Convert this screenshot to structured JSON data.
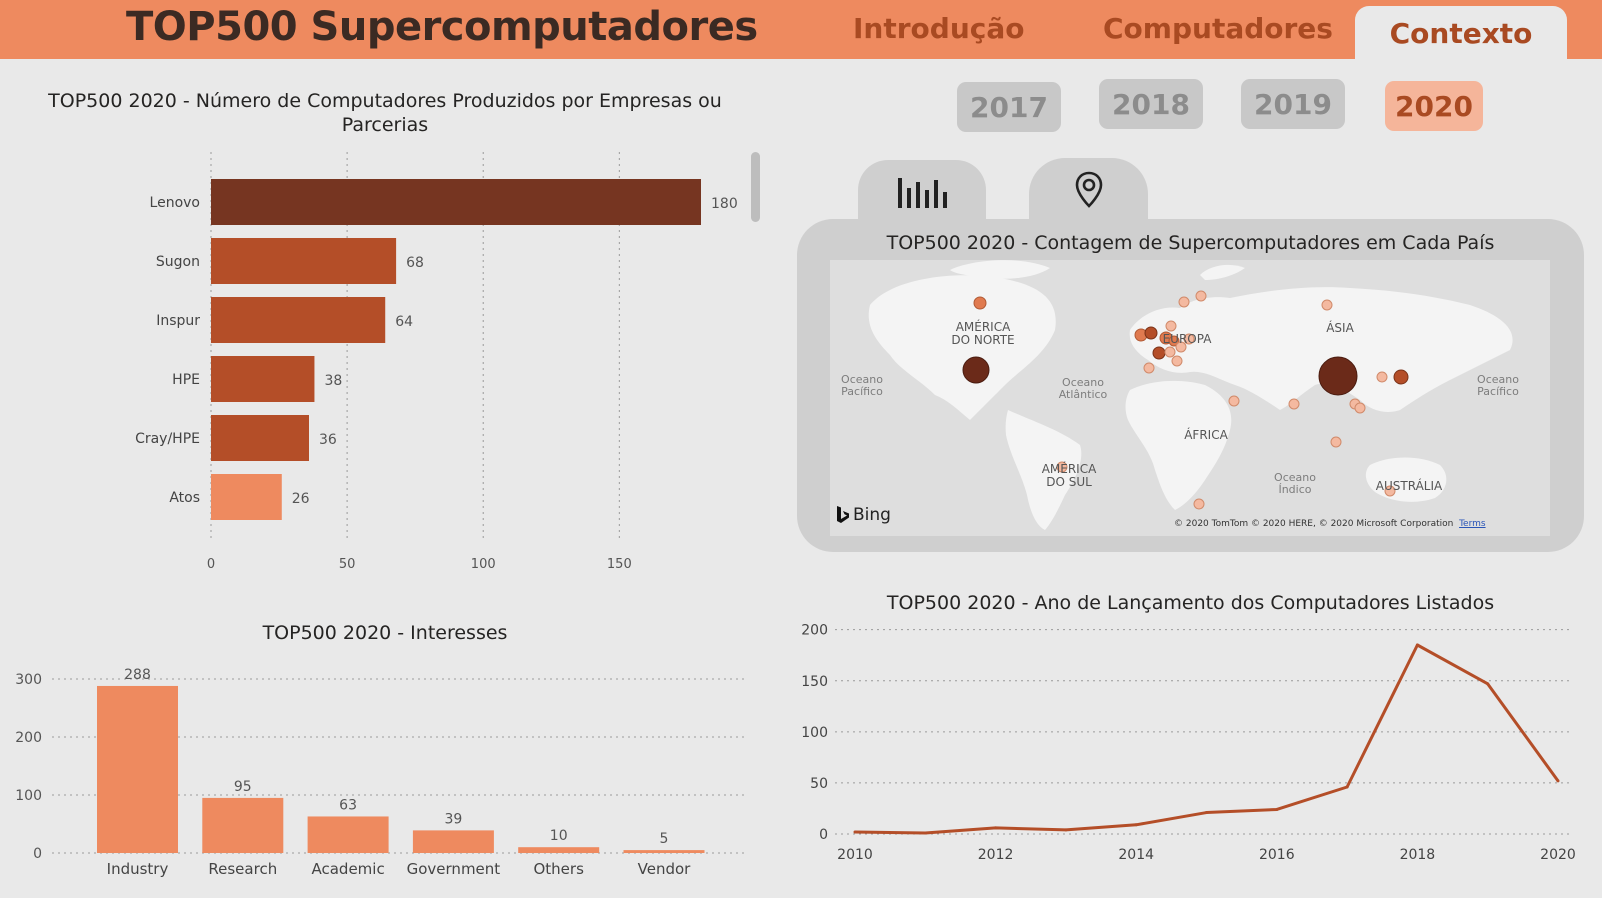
{
  "header": {
    "title": "TOP500 Supercomputadores",
    "tabs": [
      {
        "label": "Introdução",
        "active": false
      },
      {
        "label": "Computadores",
        "active": false
      },
      {
        "label": "Contexto",
        "active": true
      }
    ]
  },
  "years": [
    {
      "label": "2017",
      "active": false
    },
    {
      "label": "2018",
      "active": false
    },
    {
      "label": "2019",
      "active": false
    },
    {
      "label": "2020",
      "active": true
    }
  ],
  "view_toggle": {
    "icons": [
      "bar-chart-icon",
      "map-pin-icon"
    ]
  },
  "colors": {
    "accent": "#ee8a5f",
    "dark": "#763521",
    "mid": "#b44e28",
    "light": "#ee8a5f",
    "active_text": "#a94a22"
  },
  "vendors_chart": {
    "title": "TOP500 2020 - Número de Computadores Produzidos por Empresas ou Parcerias"
  },
  "map": {
    "title": "TOP500 2020 - Contagem de Supercomputadores em Cada País",
    "continents": [
      "AMÉRICA DO NORTE",
      "EUROPA",
      "ÁSIA",
      "ÁFRICA",
      "AMÉRICA DO SUL",
      "AUSTRÁLIA"
    ],
    "oceans": [
      "Oceano Pacífico",
      "Oceano Atlântico",
      "Oceano Índico",
      "Oceano Pacífico"
    ],
    "provider": "Bing",
    "attribution": "© 2020 TomTom © 2020 HERE, © 2020 Microsoft Corporation",
    "terms_label": "Terms"
  },
  "interests_chart": {
    "title": "TOP500 2020 - Interesses"
  },
  "launch_chart": {
    "title": "TOP500 2020 - Ano de Lançamento dos Computadores Listados"
  },
  "chart_data": [
    {
      "type": "bar",
      "orientation": "horizontal",
      "title": "TOP500 2020 - Número de Computadores Produzidos por Empresas ou Parcerias",
      "categories": [
        "Lenovo",
        "Sugon",
        "Inspur",
        "HPE",
        "Cray/HPE",
        "Atos"
      ],
      "values": [
        180,
        68,
        64,
        38,
        36,
        26
      ],
      "xlim": [
        0,
        180
      ],
      "xticks": [
        0,
        50,
        100,
        150
      ],
      "grid": true
    },
    {
      "type": "bar",
      "title": "TOP500 2020 - Interesses",
      "categories": [
        "Industry",
        "Research",
        "Academic",
        "Government",
        "Others",
        "Vendor"
      ],
      "values": [
        288,
        95,
        63,
        39,
        10,
        5
      ],
      "ylim": [
        0,
        300
      ],
      "yticks": [
        0,
        100,
        200,
        300
      ],
      "grid": true
    },
    {
      "type": "line",
      "title": "TOP500 2020 - Ano de Lançamento dos Computadores Listados",
      "x": [
        2010,
        2011,
        2012,
        2013,
        2014,
        2015,
        2016,
        2017,
        2018,
        2019,
        2020
      ],
      "y": [
        2,
        1,
        6,
        4,
        9,
        21,
        24,
        46,
        185,
        147,
        52
      ],
      "xticks": [
        2010,
        2012,
        2014,
        2016,
        2018,
        2020
      ],
      "yticks": [
        0,
        50,
        100,
        150,
        200
      ],
      "ylim": [
        0,
        200
      ],
      "grid": true
    }
  ]
}
